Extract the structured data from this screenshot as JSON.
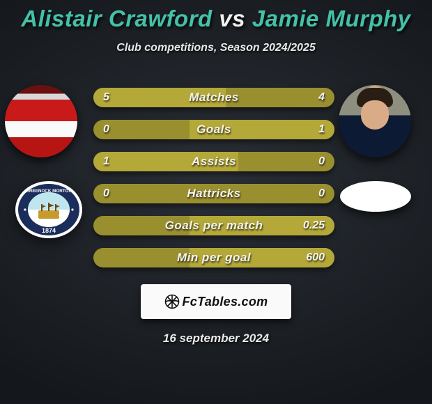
{
  "title": {
    "player1": "Alistair Crawford",
    "vs": " vs ",
    "player2": "Jamie Murphy",
    "color1": "#44c1a8",
    "color_vs": "#f1f1f1",
    "color2": "#44c1a8"
  },
  "subtitle": "Club competitions, Season 2024/2025",
  "bars": {
    "bg_color": "#9a8f2f",
    "fill_color": "#b3a838",
    "items": [
      {
        "label": "Matches",
        "left": "5",
        "right": "4",
        "fill_left_pct": 55,
        "fill_right_pct": 0
      },
      {
        "label": "Goals",
        "left": "0",
        "right": "1",
        "fill_left_pct": 0,
        "fill_right_pct": 60
      },
      {
        "label": "Assists",
        "left": "1",
        "right": "0",
        "fill_left_pct": 60,
        "fill_right_pct": 0
      },
      {
        "label": "Hattricks",
        "left": "0",
        "right": "0",
        "fill_left_pct": 0,
        "fill_right_pct": 0
      },
      {
        "label": "Goals per match",
        "left": "",
        "right": "0.25",
        "fill_left_pct": 0,
        "fill_right_pct": 60
      },
      {
        "label": "Min per goal",
        "left": "",
        "right": "600",
        "fill_left_pct": 0,
        "fill_right_pct": 60
      }
    ]
  },
  "logo": {
    "text": "FcTables.com"
  },
  "date": "16 september 2024",
  "crest1": {
    "outer_ring": "#1b2e5b",
    "ring_text_color": "#ffffff",
    "top_text": "GREENOCK  MORTON",
    "bottom_text": "1874",
    "inner_top": "#bfe6ef",
    "inner_bottom": "#ffffff",
    "ship_color": "#c79a2e"
  }
}
